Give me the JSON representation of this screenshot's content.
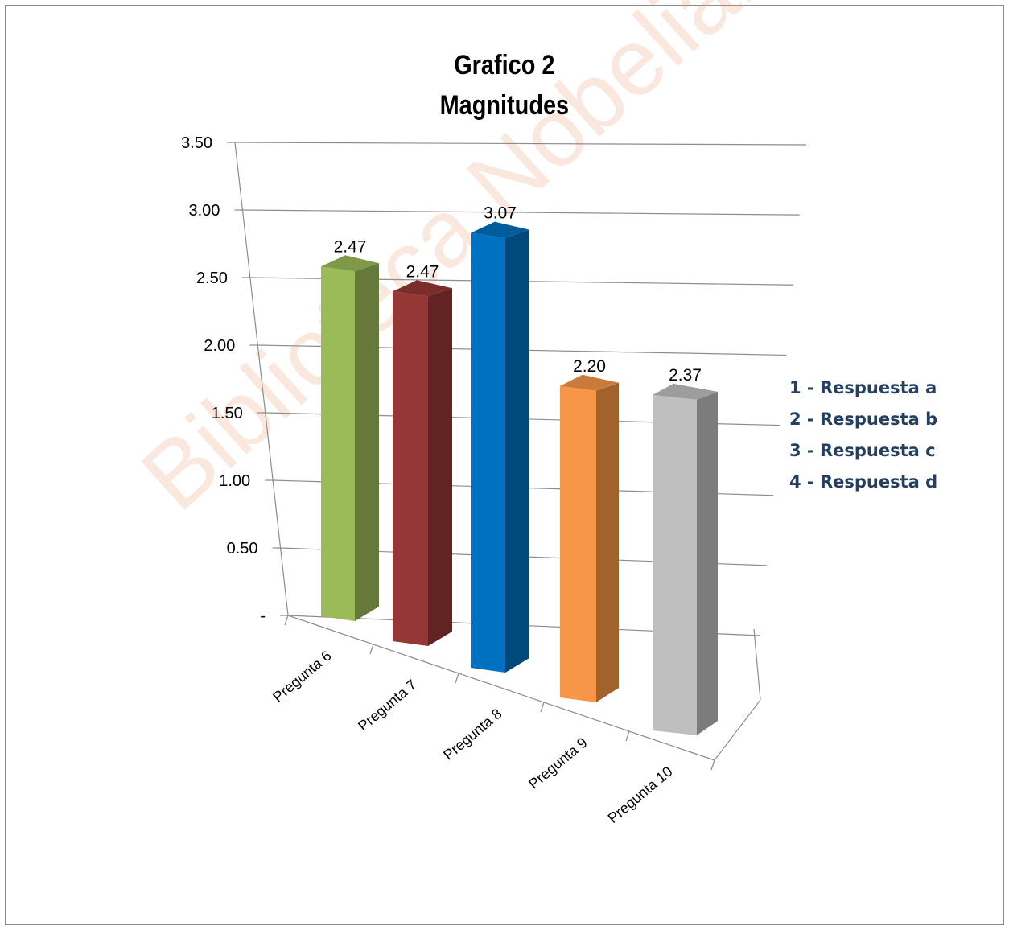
{
  "chart_data": {
    "type": "bar",
    "title": "Grafico 2",
    "subtitle": "Magnitudes",
    "categories": [
      "Pregunta 6",
      "Pregunta 7",
      "Pregunta 8",
      "Pregunta 9",
      "Pregunta 10"
    ],
    "values": [
      2.47,
      2.47,
      3.07,
      2.2,
      2.37
    ],
    "value_labels": [
      "2.47",
      "2.47",
      "3.07",
      "2.20",
      "2.37"
    ],
    "colors": [
      "#9bbb59",
      "#953735",
      "#0070c0",
      "#f79646",
      "#bfbfbf"
    ],
    "y_ticks": [
      "-",
      "0.50",
      "1.00",
      "1.50",
      "2.00",
      "2.50",
      "3.00",
      "3.50"
    ],
    "ylim": [
      0,
      3.5
    ],
    "grid": true,
    "style": "3d-perspective",
    "legend": {
      "position": "right",
      "color": "#243f60",
      "entries": [
        "1 - Respuesta a",
        "2 - Respuesta b",
        "3 - Respuesta c",
        "4 - Respuesta d"
      ]
    }
  },
  "watermark": "Biblioteca Nobeliana"
}
